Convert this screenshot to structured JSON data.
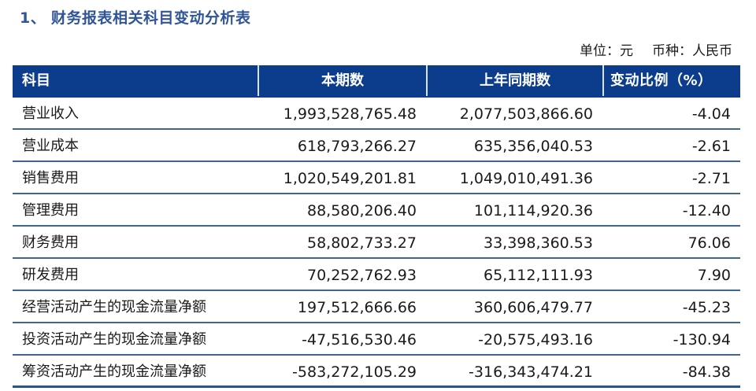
{
  "title": {
    "number": "1、",
    "text": "财务报表相关科目变动分析表"
  },
  "unit_line": {
    "unit": "单位：元",
    "currency": "币种：人民币"
  },
  "table": {
    "headers": [
      "科目",
      "本期数",
      "上年同期数",
      "变动比例（%）"
    ],
    "rows": [
      {
        "item": "营业收入",
        "current": "1,993,528,765.48",
        "prior": "2,077,503,866.60",
        "change": "-4.04"
      },
      {
        "item": "营业成本",
        "current": "618,793,266.27",
        "prior": "635,356,040.53",
        "change": "-2.61"
      },
      {
        "item": "销售费用",
        "current": "1,020,549,201.81",
        "prior": "1,049,010,491.36",
        "change": "-2.71"
      },
      {
        "item": "管理费用",
        "current": "88,580,206.40",
        "prior": "101,114,920.36",
        "change": "-12.40"
      },
      {
        "item": "财务费用",
        "current": "58,802,733.27",
        "prior": "33,398,360.53",
        "change": "76.06"
      },
      {
        "item": "研发费用",
        "current": "70,252,762.93",
        "prior": "65,112,111.93",
        "change": "7.90"
      },
      {
        "item": "经营活动产生的现金流量净额",
        "current": "197,512,666.66",
        "prior": "360,606,479.77",
        "change": "-45.23"
      },
      {
        "item": "投资活动产生的现金流量净额",
        "current": "-47,516,530.46",
        "prior": "-20,575,493.16",
        "change": "-130.94"
      },
      {
        "item": "筹资活动产生的现金流量净额",
        "current": "-583,272,105.29",
        "prior": "-316,343,474.21",
        "change": "-84.38"
      }
    ]
  },
  "colors": {
    "title": "#2f5597",
    "header_bg": "#0b3d8c",
    "header_text": "#ffffff",
    "row_rule": "#3f6690"
  }
}
